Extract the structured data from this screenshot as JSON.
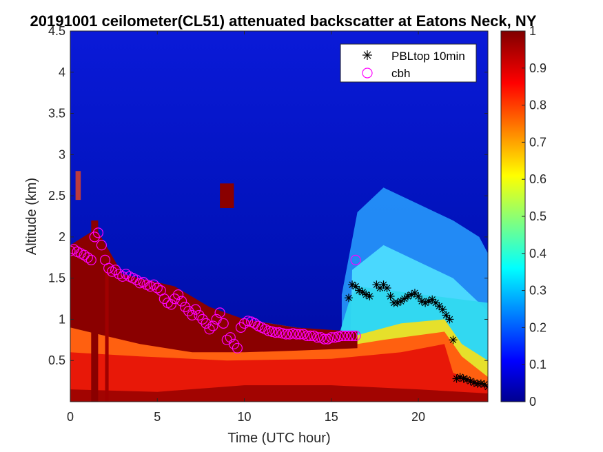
{
  "chart_data": {
    "type": "heatmap",
    "title": "20191001 ceilometer(CL51) attenuated backscatter at Eatons Neck, NY",
    "xlabel": "Time (UTC hour)",
    "ylabel": "Altitude (km)",
    "xlim": [
      0,
      24
    ],
    "ylim": [
      0.0,
      4.5
    ],
    "xticks": [
      0,
      5,
      10,
      15,
      20
    ],
    "xtick_labels": [
      "0",
      "5",
      "10",
      "15",
      "20"
    ],
    "yticks": [
      0.5,
      1,
      1.5,
      2,
      2.5,
      3,
      3.5,
      4,
      4.5
    ],
    "ytick_labels": [
      "0.5",
      "1",
      "1.5",
      "2",
      "2.5",
      "3",
      "3.5",
      "4",
      "4.5"
    ],
    "colorbar": {
      "range": [
        0,
        1
      ],
      "ticks": [
        0,
        0.1,
        0.2,
        0.3,
        0.4,
        0.5,
        0.6,
        0.7,
        0.8,
        0.9,
        1
      ],
      "tick_labels": [
        "0",
        "0.1",
        "0.2",
        "0.3",
        "0.4",
        "0.5",
        "0.6",
        "0.7",
        "0.8",
        "0.9",
        "1"
      ],
      "colormap": "jet"
    },
    "legend": {
      "placement": "top-right",
      "entries": [
        {
          "label": "PBLtop 10min",
          "marker": "asterisk",
          "color": "#000000"
        },
        {
          "label": "cbh",
          "marker": "circle",
          "color": "#ff00ff"
        }
      ]
    },
    "series": [
      {
        "name": "PBLtop 10min",
        "marker": "asterisk",
        "color": "#000000",
        "x": [
          16.0,
          16.2,
          16.4,
          16.6,
          16.8,
          17.0,
          17.2,
          17.6,
          17.8,
          18.0,
          18.2,
          18.4,
          18.6,
          18.8,
          19.0,
          19.2,
          19.4,
          19.6,
          19.8,
          20.0,
          20.2,
          20.4,
          20.6,
          20.8,
          21.0,
          21.2,
          21.4,
          21.6,
          21.8,
          22.0,
          22.2,
          22.4,
          22.6,
          22.8,
          23.0,
          23.2,
          23.4,
          23.6,
          23.8,
          24.0
        ],
        "y": [
          1.26,
          1.42,
          1.4,
          1.35,
          1.33,
          1.3,
          1.28,
          1.42,
          1.38,
          1.42,
          1.38,
          1.28,
          1.2,
          1.2,
          1.22,
          1.25,
          1.28,
          1.3,
          1.32,
          1.28,
          1.22,
          1.2,
          1.22,
          1.24,
          1.2,
          1.16,
          1.12,
          1.05,
          1.0,
          0.75,
          0.28,
          0.3,
          0.28,
          0.27,
          0.25,
          0.23,
          0.22,
          0.22,
          0.21,
          0.18
        ]
      },
      {
        "name": "cbh",
        "marker": "circle",
        "color": "#ff00ff",
        "x": [
          0.0,
          0.2,
          0.4,
          0.6,
          0.8,
          1.0,
          1.2,
          1.4,
          1.6,
          1.8,
          2.0,
          2.2,
          2.4,
          2.6,
          2.8,
          3.0,
          3.2,
          3.4,
          3.6,
          3.8,
          4.0,
          4.2,
          4.4,
          4.6,
          4.8,
          5.0,
          5.2,
          5.4,
          5.6,
          5.8,
          6.0,
          6.2,
          6.4,
          6.6,
          6.8,
          7.0,
          7.2,
          7.4,
          7.6,
          7.8,
          8.0,
          8.2,
          8.4,
          8.6,
          8.8,
          9.0,
          9.2,
          9.4,
          9.6,
          9.8,
          10.0,
          10.2,
          10.4,
          10.6,
          10.8,
          11.0,
          11.2,
          11.4,
          11.6,
          11.8,
          12.0,
          12.2,
          12.4,
          12.6,
          12.8,
          13.0,
          13.2,
          13.4,
          13.6,
          13.8,
          14.0,
          14.2,
          14.4,
          14.6,
          14.8,
          15.0,
          15.2,
          15.4,
          15.6,
          15.8,
          16.0,
          16.2,
          16.4,
          16.4
        ],
        "y": [
          1.83,
          1.85,
          1.82,
          1.8,
          1.78,
          1.75,
          1.72,
          2.0,
          2.05,
          1.9,
          1.72,
          1.62,
          1.58,
          1.6,
          1.55,
          1.52,
          1.55,
          1.52,
          1.5,
          1.48,
          1.44,
          1.45,
          1.42,
          1.4,
          1.42,
          1.38,
          1.35,
          1.25,
          1.2,
          1.18,
          1.25,
          1.3,
          1.22,
          1.15,
          1.1,
          1.05,
          1.12,
          1.05,
          1.0,
          0.95,
          0.88,
          0.92,
          1.0,
          1.08,
          0.95,
          0.75,
          0.78,
          0.7,
          0.65,
          0.9,
          0.95,
          0.98,
          0.97,
          0.95,
          0.92,
          0.9,
          0.88,
          0.86,
          0.85,
          0.84,
          0.84,
          0.83,
          0.82,
          0.82,
          0.83,
          0.82,
          0.82,
          0.82,
          0.8,
          0.8,
          0.8,
          0.78,
          0.78,
          0.76,
          0.76,
          0.78,
          0.78,
          0.79,
          0.8,
          0.8,
          0.8,
          0.8,
          0.8,
          1.72
        ]
      }
    ],
    "heatmap_description_values": {
      "low_cloud_band_km": [
        0.0,
        0.65
      ],
      "note": "attenuated backscatter, jet colormap"
    }
  }
}
